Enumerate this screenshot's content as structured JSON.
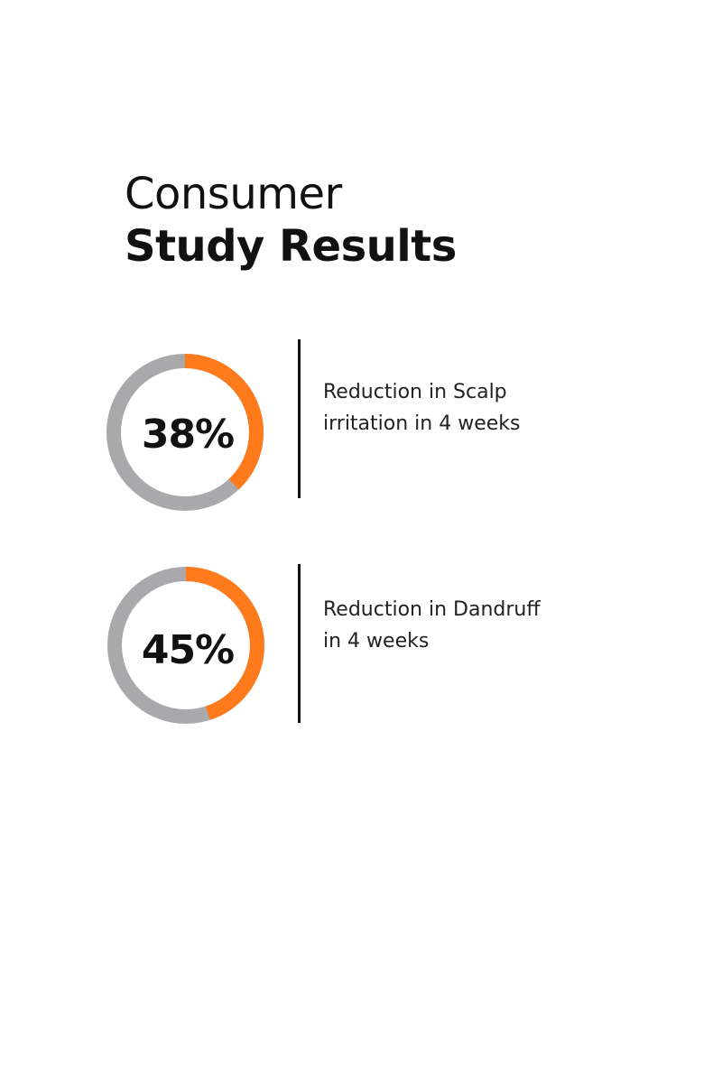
{
  "headline": {
    "line1": "Consumer",
    "line2": "Study Results"
  },
  "colors": {
    "accent": "#ff7a1a",
    "track": "#a9a8ab",
    "text": "#111111"
  },
  "chart_data": [
    {
      "type": "pie",
      "value": 38,
      "label": "38%",
      "description": [
        "Reduction in Scalp",
        "irritation in 4 weeks"
      ]
    },
    {
      "type": "pie",
      "value": 45,
      "label": "45%",
      "description": [
        "Reduction in Dandruff",
        "in 4 weeks"
      ]
    }
  ]
}
